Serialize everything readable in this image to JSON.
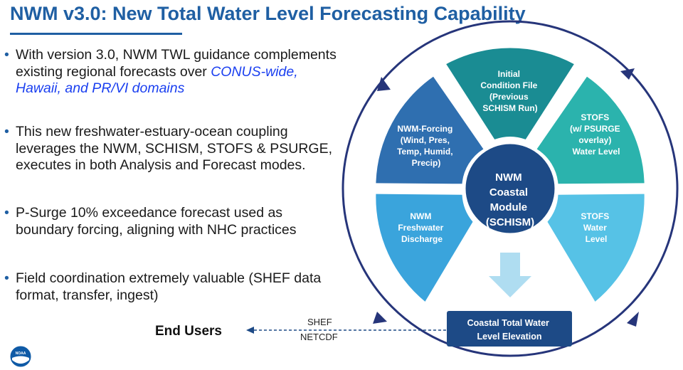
{
  "title": "NWM v3.0: New Total Water Level Forecasting Capability",
  "bullets": [
    {
      "text": "With version 3.0, NWM TWL guidance complements existing regional forecasts over ",
      "highlight": "CONUS-wide, Hawaii, and PR/VI domains"
    },
    {
      "text": "This new freshwater-estuary-ocean coupling leverages the NWM, SCHISM, STOFS & PSURGE,  executes in both Analysis and Forecast modes."
    },
    {
      "text": "P-Surge 10% exceedance forecast used as boundary forcing, aligning with NHC practices"
    },
    {
      "text": "Field coordination extremely valuable (SHEF data format, transfer, ingest)"
    }
  ],
  "diagram": {
    "hub_lines": [
      "NWM",
      "Coastal",
      "Module",
      "(SCHISM)"
    ],
    "segments": [
      {
        "id": "initial",
        "lines": [
          "Initial",
          "Condition File",
          "(Previous",
          "SCHISM Run)"
        ],
        "color": "#1a8c93"
      },
      {
        "id": "stofs-psurge",
        "lines": [
          "STOFS",
          "(w/ PSURGE",
          "overlay)",
          "Water Level"
        ],
        "color": "#2bb3ad"
      },
      {
        "id": "stofs-level",
        "lines": [
          "STOFS",
          "Water",
          "Level"
        ],
        "color": "#56c2e6"
      },
      {
        "id": "nwm-discharge",
        "lines": [
          "NWM",
          "Freshwater",
          "Discharge"
        ],
        "color": "#3aa4dc"
      },
      {
        "id": "nwm-forcing",
        "lines": [
          "NWM-Forcing",
          "(Wind, Pres,",
          "Temp, Humid,",
          "Precip)"
        ],
        "color": "#2f6fb0"
      }
    ],
    "hub_color": "#1d4a86",
    "output_box_lines": [
      "Coastal Total Water",
      "Level Elevation"
    ],
    "output_box_color": "#1d4a86",
    "end_users": "End Users",
    "formats": [
      "SHEF",
      "NETCDF"
    ]
  },
  "logo": {
    "text": "NOAA"
  }
}
